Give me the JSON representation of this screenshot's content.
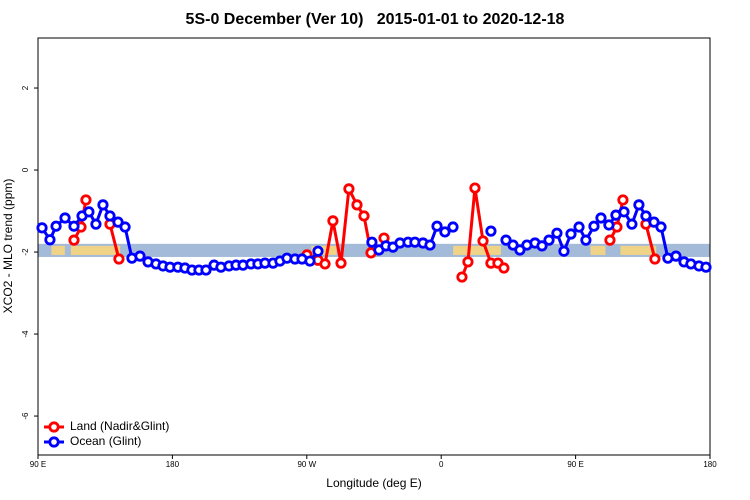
{
  "chart_data": {
    "type": "line",
    "title": "5S-0 December (Ver 10)   2015-01-01 to 2020-12-18",
    "xlabel": "Longitude (deg E)",
    "ylabel": "XCO2 - MLO trend (ppm)",
    "xlim": [
      90,
      540
    ],
    "ylim": [
      -6.95,
      3.22
    ],
    "xticks": [
      {
        "value": 90,
        "label": "90 E"
      },
      180,
      {
        "value": 270,
        "label": "90 W"
      },
      {
        "value": 360,
        "label": "0"
      },
      {
        "value": 450,
        "label": "90 E"
      },
      {
        "value": 540,
        "label": "180"
      }
    ],
    "yticks": [
      -6,
      -4,
      -2,
      0,
      2
    ],
    "legend": "bottom-left",
    "band": [
      -2.12,
      -1.8
    ],
    "band_color": "#a3bad9",
    "land_color": "#f7d67c",
    "land_spans": [
      [
        99,
        108
      ],
      [
        112,
        145
      ],
      [
        273,
        290
      ],
      [
        368,
        400
      ],
      [
        460,
        470
      ],
      [
        480,
        504
      ]
    ],
    "series": [
      {
        "name": "Land (Nadir&Glint)",
        "color": "#ff0000",
        "x": [
          114.1,
          118.8,
          122.1,
          null,
          138.2,
          144.2,
          null,
          270.1,
          277.5,
          282.2,
          287.5,
          292.9,
          298.2,
          303.6,
          308.3,
          313.0,
          null,
          321.7,
          null,
          373.9,
          377.9,
          382.6,
          388.0,
          393.3,
          398.0,
          402.0,
          null,
          473.0,
          477.7,
          481.7,
          null,
          497.1,
          503.1
        ],
        "values": [
          -1.71,
          -1.39,
          -0.73,
          null,
          -1.32,
          -2.17,
          null,
          -2.07,
          -2.2,
          -2.29,
          -1.24,
          -2.27,
          -0.46,
          -0.85,
          -1.12,
          -2.02,
          null,
          -1.66,
          null,
          -2.61,
          -2.24,
          -0.44,
          -1.73,
          -2.27,
          -2.27,
          -2.39,
          null,
          -1.71,
          -1.39,
          -0.73,
          null,
          -1.32,
          -2.17
        ]
      },
      {
        "name": "Ocean (Glint)",
        "color": "#0000ff",
        "x": [
          92.7,
          98.0,
          102.1,
          108.1,
          114.1,
          119.5,
          124.1,
          128.8,
          133.5,
          138.2,
          143.6,
          148.3,
          152.9,
          158.3,
          163.7,
          169.0,
          173.7,
          178.4,
          183.7,
          188.4,
          193.1,
          197.8,
          202.5,
          207.9,
          212.5,
          217.9,
          222.6,
          227.3,
          232.6,
          237.3,
          242.0,
          247.4,
          252.0,
          256.7,
          262.1,
          266.8,
          272.1,
          277.5,
          null,
          313.6,
          318.3,
          323.0,
          327.7,
          332.4,
          337.8,
          342.4,
          347.8,
          352.5,
          357.2,
          362.5,
          367.9,
          null,
          393.3,
          null,
          403.4,
          408.1,
          412.7,
          417.4,
          422.8,
          427.5,
          432.2,
          437.5,
          442.2,
          446.9,
          452.3,
          456.9,
          462.3,
          467.0,
          472.3,
          477.0,
          482.4,
          487.7,
          492.4,
          497.1,
          502.5,
          507.2,
          511.8,
          517.2,
          522.6,
          527.2,
          532.6,
          537.3
        ],
        "values": [
          -1.41,
          -1.7,
          -1.37,
          -1.17,
          -1.37,
          -1.12,
          -1.02,
          -1.32,
          -0.85,
          -1.12,
          -1.27,
          -1.39,
          -2.15,
          -2.1,
          -2.24,
          -2.29,
          -2.34,
          -2.37,
          -2.37,
          -2.39,
          -2.44,
          -2.44,
          -2.44,
          -2.32,
          -2.37,
          -2.34,
          -2.32,
          -2.32,
          -2.29,
          -2.29,
          -2.27,
          -2.27,
          -2.22,
          -2.15,
          -2.17,
          -2.17,
          -2.22,
          -1.98,
          null,
          -1.76,
          -1.95,
          -1.85,
          -1.88,
          -1.78,
          -1.76,
          -1.76,
          -1.78,
          -1.83,
          -1.37,
          -1.51,
          -1.39,
          null,
          -1.49,
          null,
          -1.71,
          -1.83,
          -1.95,
          -1.83,
          -1.78,
          -1.85,
          -1.71,
          -1.54,
          -1.98,
          -1.56,
          -1.39,
          -1.71,
          -1.37,
          -1.17,
          -1.34,
          -1.1,
          -1.02,
          -1.32,
          -0.85,
          -1.12,
          -1.27,
          -1.39,
          -2.15,
          -2.1,
          -2.24,
          -2.29,
          -2.34,
          -2.37
        ]
      }
    ]
  }
}
